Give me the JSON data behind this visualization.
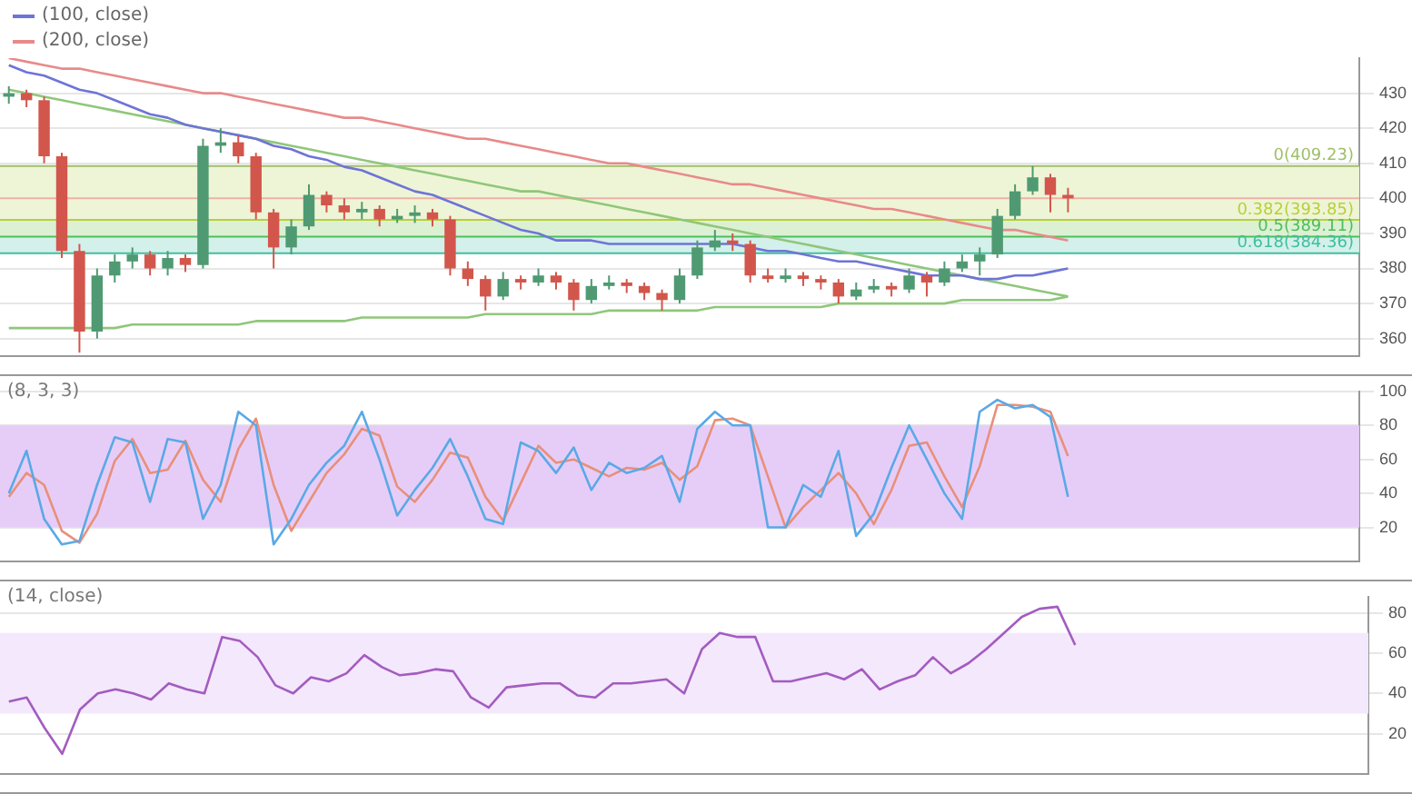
{
  "chart_data": [
    {
      "type": "candlestick",
      "categories": [
        null,
        null,
        null,
        null,
        null,
        null,
        null,
        null,
        null,
        null,
        null,
        null,
        null,
        null,
        null,
        null,
        null,
        null,
        null,
        null,
        null,
        null,
        null,
        null,
        null,
        null,
        null,
        null,
        null,
        null,
        null,
        null,
        null,
        null,
        null,
        null,
        null,
        null,
        null,
        null,
        null,
        null,
        null,
        null,
        null,
        null,
        null,
        null,
        null,
        null,
        null,
        null,
        null,
        null,
        null,
        null,
        null,
        null,
        null,
        null,
        null,
        null,
        null,
        null,
        null,
        null,
        null,
        null,
        null,
        null,
        null,
        null,
        null,
        null,
        null,
        null,
        null
      ],
      "ohlc": [
        [
          429,
          432,
          427,
          430
        ],
        [
          430,
          431,
          426,
          428
        ],
        [
          428,
          429,
          410,
          412
        ],
        [
          412,
          413,
          383,
          385
        ],
        [
          385,
          387,
          356,
          362
        ],
        [
          362,
          380,
          360,
          378
        ],
        [
          378,
          384,
          376,
          382
        ],
        [
          382,
          386,
          380,
          384
        ],
        [
          384,
          385,
          378,
          380
        ],
        [
          380,
          385,
          378,
          383
        ],
        [
          383,
          384,
          379,
          381
        ],
        [
          381,
          417,
          380,
          415
        ],
        [
          415,
          420,
          413,
          416
        ],
        [
          416,
          418,
          410,
          412
        ],
        [
          412,
          413,
          394,
          396
        ],
        [
          396,
          397,
          380,
          386
        ],
        [
          386,
          394,
          384,
          392
        ],
        [
          392,
          404,
          391,
          401
        ],
        [
          401,
          402,
          396,
          398
        ],
        [
          398,
          400,
          394,
          396
        ],
        [
          396,
          399,
          394,
          397
        ],
        [
          397,
          398,
          392,
          394
        ],
        [
          394,
          397,
          393,
          395
        ],
        [
          395,
          398,
          393,
          396
        ],
        [
          396,
          397,
          392,
          394
        ],
        [
          394,
          395,
          378,
          380
        ],
        [
          380,
          382,
          375,
          377
        ],
        [
          377,
          378,
          368,
          372
        ],
        [
          372,
          379,
          371,
          377
        ],
        [
          377,
          378,
          374,
          376
        ],
        [
          376,
          380,
          375,
          378
        ],
        [
          378,
          379,
          374,
          376
        ],
        [
          376,
          377,
          368,
          371
        ],
        [
          371,
          377,
          370,
          375
        ],
        [
          375,
          378,
          374,
          376
        ],
        [
          376,
          377,
          373,
          375
        ],
        [
          375,
          376,
          371,
          373
        ],
        [
          373,
          374,
          368,
          371
        ],
        [
          371,
          380,
          370,
          378
        ],
        [
          378,
          388,
          377,
          386
        ],
        [
          386,
          391,
          385,
          388
        ],
        [
          388,
          390,
          385,
          387
        ],
        [
          387,
          388,
          376,
          378
        ],
        [
          378,
          380,
          376,
          377
        ],
        [
          377,
          380,
          376,
          378
        ],
        [
          378,
          379,
          375,
          377
        ],
        [
          377,
          378,
          374,
          376
        ],
        [
          376,
          377,
          370,
          372
        ],
        [
          372,
          376,
          371,
          374
        ],
        [
          374,
          377,
          373,
          375
        ],
        [
          375,
          376,
          372,
          374
        ],
        [
          374,
          380,
          373,
          378
        ],
        [
          378,
          379,
          372,
          376
        ],
        [
          376,
          382,
          375,
          380
        ],
        [
          380,
          384,
          379,
          382
        ],
        [
          382,
          386,
          378,
          384
        ],
        [
          384,
          397,
          383,
          395
        ],
        [
          395,
          404,
          394,
          402
        ],
        [
          402,
          409.2,
          401,
          406
        ],
        [
          406,
          407,
          396,
          401
        ],
        [
          401,
          403,
          396,
          400
        ],
        null,
        null,
        null,
        null,
        null,
        null,
        null,
        null,
        null,
        null,
        null,
        null,
        null,
        null,
        null,
        null
      ],
      "series": [
        {
          "type": "line",
          "name": "(100, close)",
          "color": "#6e74d6",
          "values": [
            438,
            436,
            435,
            433,
            431,
            430,
            428,
            426,
            424,
            423,
            421,
            420,
            419,
            418,
            417,
            415,
            414,
            412,
            411,
            409,
            408,
            406,
            404,
            402,
            401,
            399,
            397,
            395,
            393,
            391,
            390,
            388,
            388,
            388,
            387,
            387,
            387,
            387,
            387,
            387,
            387,
            387,
            386,
            385,
            385,
            384,
            383,
            382,
            382,
            381,
            380,
            379,
            378,
            378,
            378,
            377,
            377,
            378,
            378,
            379,
            380,
            null,
            null,
            null,
            null,
            null,
            null,
            null,
            null,
            null,
            null,
            null,
            null,
            null,
            null,
            null,
            null
          ]
        },
        {
          "type": "line",
          "name": "(200, close)",
          "color": "#e88a8a",
          "values": [
            440,
            439,
            438,
            437,
            437,
            436,
            435,
            434,
            433,
            432,
            431,
            430,
            430,
            429,
            428,
            427,
            426,
            425,
            424,
            423,
            423,
            422,
            421,
            420,
            419,
            418,
            417,
            417,
            416,
            415,
            414,
            413,
            412,
            411,
            410,
            410,
            409,
            408,
            407,
            406,
            405,
            404,
            404,
            403,
            402,
            401,
            400,
            399,
            398,
            397,
            397,
            396,
            395,
            394,
            393,
            392,
            391,
            391,
            390,
            389,
            388,
            null,
            null,
            null,
            null,
            null,
            null,
            null,
            null,
            null,
            null,
            null,
            null,
            null,
            null,
            null,
            null
          ]
        },
        {
          "type": "line",
          "color": "#8fc77a",
          "values": [
            431,
            430,
            429,
            428,
            427,
            426,
            425,
            424,
            423,
            422,
            421,
            420,
            419,
            418,
            417,
            416,
            415,
            414,
            413,
            412,
            411,
            410,
            409,
            408,
            407,
            406,
            405,
            404,
            403,
            402,
            402,
            401,
            400,
            399,
            398,
            397,
            396,
            395,
            394,
            393,
            392,
            391,
            390,
            389,
            388,
            387,
            386,
            385,
            384,
            383,
            382,
            381,
            380,
            379,
            378,
            377,
            376,
            375,
            374,
            373,
            372,
            null,
            null,
            null,
            null,
            null,
            null,
            null,
            null,
            null,
            null,
            null,
            null,
            null,
            null,
            null,
            null
          ]
        },
        {
          "type": "line",
          "color": "#8fc77a",
          "values": [
            363,
            363,
            363,
            363,
            363,
            363,
            363,
            364,
            364,
            364,
            364,
            364,
            364,
            364,
            365,
            365,
            365,
            365,
            365,
            365,
            366,
            366,
            366,
            366,
            366,
            366,
            366,
            367,
            367,
            367,
            367,
            367,
            367,
            367,
            368,
            368,
            368,
            368,
            368,
            368,
            369,
            369,
            369,
            369,
            369,
            369,
            369,
            370,
            370,
            370,
            370,
            370,
            370,
            370,
            371,
            371,
            371,
            371,
            371,
            371,
            372,
            null,
            null,
            null,
            null,
            null,
            null,
            null,
            null,
            null,
            null,
            null,
            null,
            null,
            null,
            null,
            null
          ]
        }
      ],
      "ylim": [
        355,
        440
      ],
      "yticks": [
        360,
        370,
        380,
        390,
        400,
        410,
        420,
        430
      ],
      "bands": [
        {
          "axis": "y",
          "from": 393.85,
          "to": 409.23,
          "color": "#eef5d6"
        },
        {
          "axis": "y",
          "from": 389.11,
          "to": 393.85,
          "color": "#dcf0d4"
        },
        {
          "axis": "y",
          "from": 384.36,
          "to": 389.11,
          "color": "#d4f0ea"
        }
      ],
      "ref_lines": [
        {
          "axis": "y",
          "value": 409.23,
          "label": "0(409.23)",
          "color": "#9fbf6a"
        },
        {
          "axis": "y",
          "value": 393.85,
          "label": "0.382(393.85)",
          "color": "#b8cf3a"
        },
        {
          "axis": "y",
          "value": 389.11,
          "label": "0.5(389.11)",
          "color": "#4cbf5a"
        },
        {
          "axis": "y",
          "value": 384.36,
          "label": "0.618(384.36)",
          "color": "#3fbfa0"
        },
        {
          "axis": "y",
          "value": 400,
          "label": null,
          "color": "#f0b0a8"
        }
      ],
      "grid": "y",
      "legend": "top left",
      "tick_labels": "y"
    },
    {
      "type": "line",
      "title": "(8, 3, 3)",
      "categories": [
        null,
        null,
        null,
        null,
        null,
        null,
        null,
        null,
        null,
        null,
        null,
        null,
        null,
        null,
        null,
        null,
        null,
        null,
        null,
        null,
        null,
        null,
        null,
        null,
        null,
        null,
        null,
        null,
        null,
        null,
        null,
        null,
        null,
        null,
        null,
        null,
        null,
        null,
        null,
        null,
        null,
        null,
        null,
        null,
        null,
        null,
        null,
        null,
        null,
        null,
        null,
        null,
        null,
        null,
        null,
        null,
        null,
        null,
        null,
        null,
        null,
        null,
        null,
        null,
        null,
        null,
        null,
        null,
        null,
        null,
        null,
        null,
        null,
        null,
        null,
        null,
        null
      ],
      "series": [
        {
          "color": "#5aa9e6",
          "values": [
            40,
            65,
            25,
            10,
            12,
            45,
            73,
            70,
            35,
            72,
            70,
            25,
            45,
            88,
            80,
            10,
            25,
            45,
            58,
            68,
            88,
            60,
            27,
            42,
            55,
            72,
            50,
            25,
            22,
            70,
            65,
            52,
            67,
            42,
            58,
            52,
            55,
            62,
            35,
            78,
            88,
            80,
            80,
            20,
            20,
            45,
            38,
            65,
            15,
            28,
            55,
            80,
            60,
            40,
            25,
            88,
            95,
            90,
            92,
            85,
            38,
            null,
            null,
            null,
            null,
            null,
            null,
            null,
            null,
            null,
            null,
            null,
            null,
            null,
            null,
            null,
            null
          ]
        },
        {
          "color": "#e8907a",
          "values": [
            38,
            52,
            45,
            18,
            11,
            28,
            59,
            72,
            52,
            54,
            71,
            48,
            35,
            66,
            84,
            45,
            18,
            35,
            52,
            63,
            78,
            74,
            44,
            35,
            48,
            64,
            61,
            38,
            24,
            46,
            68,
            58,
            60,
            55,
            50,
            55,
            54,
            58,
            48,
            56,
            83,
            84,
            80,
            50,
            20,
            32,
            42,
            52,
            40,
            22,
            42,
            68,
            70,
            50,
            32,
            56,
            92,
            92,
            91,
            88,
            62,
            null,
            null,
            null,
            null,
            null,
            null,
            null,
            null,
            null,
            null,
            null,
            null,
            null,
            null,
            null,
            null
          ]
        }
      ],
      "ylim": [
        0,
        100
      ],
      "yticks": [
        20,
        40,
        60,
        80,
        100
      ],
      "bands": [
        {
          "axis": "y",
          "from": 20,
          "to": 80,
          "color": "#e6cdf8"
        }
      ],
      "grid": "y",
      "tick_labels": "y"
    },
    {
      "type": "line",
      "title": "(14, close)",
      "categories": [
        null,
        null,
        null,
        null,
        null,
        null,
        null,
        null,
        null,
        null,
        null,
        null,
        null,
        null,
        null,
        null,
        null,
        null,
        null,
        null,
        null,
        null,
        null,
        null,
        null,
        null,
        null,
        null,
        null,
        null,
        null,
        null,
        null,
        null,
        null,
        null,
        null,
        null,
        null,
        null,
        null,
        null,
        null,
        null,
        null,
        null,
        null,
        null,
        null,
        null,
        null,
        null,
        null,
        null,
        null,
        null,
        null,
        null,
        null,
        null,
        null,
        null,
        null,
        null,
        null,
        null,
        null,
        null,
        null,
        null,
        null,
        null,
        null,
        null,
        null,
        null,
        null
      ],
      "series": [
        {
          "color": "#a35cc0",
          "values": [
            36,
            38,
            23,
            10,
            32,
            40,
            42,
            40,
            37,
            45,
            42,
            40,
            68,
            66,
            58,
            44,
            40,
            48,
            46,
            50,
            59,
            53,
            49,
            50,
            52,
            51,
            38,
            33,
            43,
            44,
            45,
            45,
            39,
            38,
            45,
            45,
            46,
            47,
            40,
            62,
            70,
            68,
            68,
            46,
            46,
            48,
            50,
            47,
            52,
            42,
            46,
            49,
            58,
            50,
            55,
            62,
            70,
            78,
            82,
            83,
            64,
            null,
            null,
            null,
            null,
            null,
            null,
            null,
            null,
            null,
            null,
            null,
            null,
            null,
            null,
            null,
            null
          ]
        }
      ],
      "ylim": [
        0,
        88
      ],
      "yticks": [
        20,
        40,
        60,
        80
      ],
      "bands": [
        {
          "axis": "y",
          "from": 30,
          "to": 70,
          "color": "#f4e8fc"
        }
      ],
      "grid": "y",
      "tick_labels": "y"
    }
  ]
}
